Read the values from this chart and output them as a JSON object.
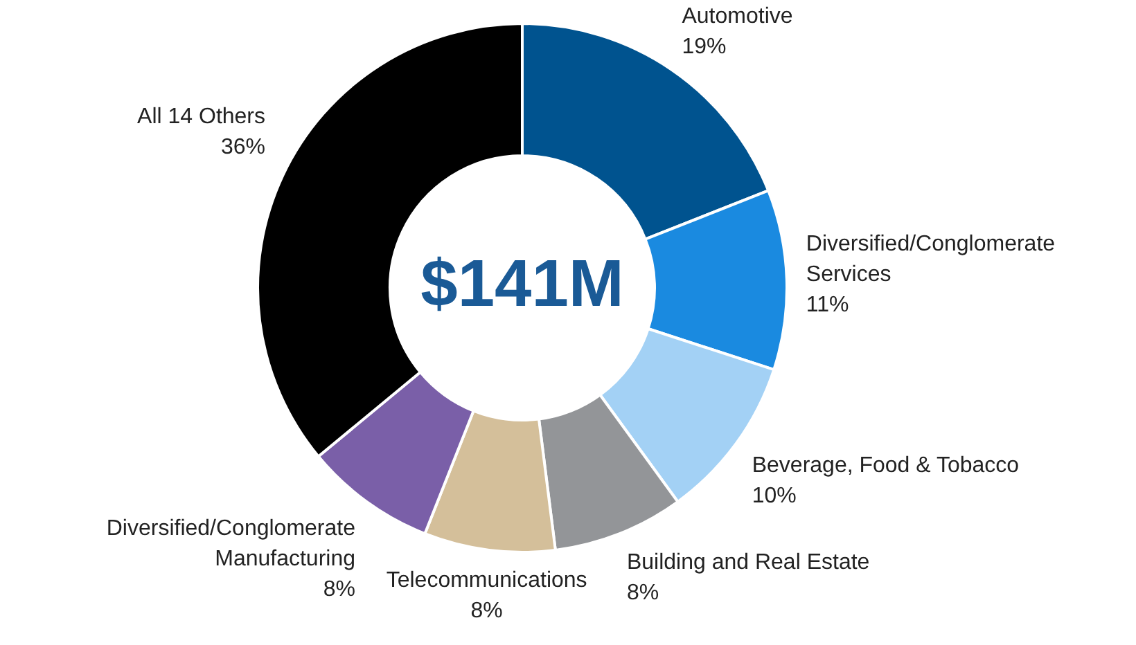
{
  "chart_data": {
    "type": "donut",
    "categories": [
      "Automotive",
      "Diversified/Conglomerate Services",
      "Beverage, Food & Tobacco",
      "Building and Real Estate",
      "Telecommunications",
      "Diversified/Conglomerate Manufacturing",
      "All 14 Others"
    ],
    "values": [
      19,
      11,
      10,
      8,
      8,
      8,
      36
    ],
    "value_labels": [
      "19%",
      "11%",
      "10%",
      "8%",
      "8%",
      "8%",
      "36%"
    ],
    "colors": [
      "#00538f",
      "#1a8ae0",
      "#a3d1f5",
      "#939598",
      "#d4bf9a",
      "#7a5fa8",
      "#000000"
    ],
    "annotations": [
      "$141M"
    ],
    "legend": false
  }
}
